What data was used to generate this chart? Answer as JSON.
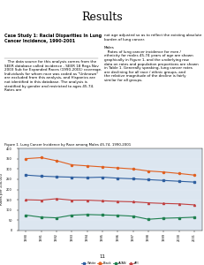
{
  "title": "Results",
  "figure_title": "Figure 1. Lung Cancer Incidence by Race among Males 45-74, 1990-2001",
  "years": [
    1990,
    1991,
    1992,
    1993,
    1994,
    1995,
    1996,
    1997,
    1998,
    1999,
    2000,
    2001
  ],
  "white": [
    270,
    265,
    262,
    260,
    258,
    260,
    255,
    252,
    248,
    244,
    240,
    236
  ],
  "black": [
    350,
    355,
    340,
    320,
    315,
    310,
    305,
    300,
    290,
    285,
    278,
    270
  ],
  "ai_an": [
    75,
    65,
    62,
    75,
    78,
    76,
    74,
    70,
    55,
    60,
    62,
    65
  ],
  "api": [
    150,
    148,
    155,
    148,
    148,
    145,
    142,
    140,
    135,
    132,
    130,
    125
  ],
  "white_color": "#3060a0",
  "black_color": "#e06020",
  "ai_an_color": "#208050",
  "api_color": "#c04040",
  "ylabel": "Rates per 100,000",
  "ylim": [
    0,
    400
  ],
  "yticks": [
    0,
    50,
    100,
    150,
    200,
    250,
    300,
    350,
    400
  ],
  "bg_color": "#dce6f0",
  "page_bg": "#ffffff",
  "header_color": "#c8d8e8",
  "body_text_left": "Case Study 1: Racial Disparities In Lung\nCancer Incidence, 1990-2001\n\n   The data source for this analysis comes from the SEER database called incidence - SEER 18 Regs Nov 2003 Sub for Expanded Races (1990-2001) coverage. Individuals for whom race was coded as \"Unknown\" are excluded from this analysis, and Hispanics are not identified in this database. The analysis is stratified by gender and restricted to ages 45-74. Rates are",
  "body_text_right": "not age adjusted so as to reflect the existing absolute burden of lung cancer.\n\nMales\n   Rates of lung cancer incidence for men / ethnicity for males 45-74 years of age are shown graphically in Figure 1, and the underlying raw data on rates and population proportions are shown in Table 1. Generally speaking, lung cancer rates are declining for all race / ethnic groups, and the relative magnitude of the decline is fairly similar for all groups.",
  "legend_labels": [
    "White",
    "Black",
    "AI/AN",
    "API"
  ],
  "footnote": "11"
}
